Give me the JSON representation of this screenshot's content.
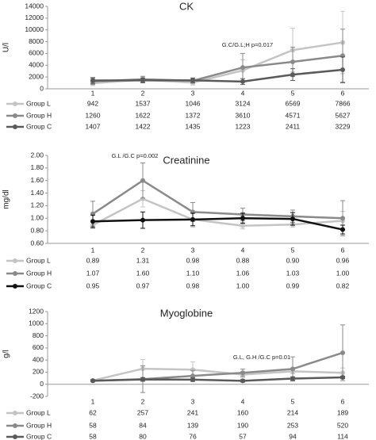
{
  "chart_data": [
    {
      "type": "line",
      "title": "CK",
      "ylabel": "U/l",
      "annotation": "G.C/G.L;H p=0.017",
      "categories": [
        "1",
        "2",
        "3",
        "4",
        "5",
        "6"
      ],
      "ylim": [
        0,
        14000
      ],
      "yticks": [
        0,
        2000,
        4000,
        6000,
        8000,
        10000,
        12000,
        14000
      ],
      "series": [
        {
          "name": "Group L",
          "color": "#c4c4c4",
          "values": [
            942,
            1537,
            1046,
            3124,
            6569,
            7866
          ],
          "errors": [
            400,
            500,
            400,
            1800,
            3700,
            5300
          ]
        },
        {
          "name": "Group H",
          "color": "#8a8a8a",
          "values": [
            1260,
            1622,
            1372,
            3610,
            4571,
            5627
          ],
          "errors": [
            500,
            500,
            400,
            2400,
            2500,
            4500
          ]
        },
        {
          "name": "Group C",
          "color": "#5a5a5a",
          "values": [
            1407,
            1422,
            1435,
            1223,
            2411,
            3229
          ],
          "errors": [
            500,
            400,
            400,
            500,
            1000,
            2200
          ]
        }
      ]
    },
    {
      "type": "line",
      "title": "Creatinine",
      "ylabel": "mg/dl",
      "annotation": "G.L /G.C p=0.002",
      "categories": [
        "1",
        "2",
        "3",
        "4",
        "5",
        "6"
      ],
      "ylim": [
        0.6,
        2.0
      ],
      "yticks": [
        {
          "value": 0.6,
          "label": "0.60"
        },
        {
          "value": 0.8,
          "label": "0.80"
        },
        {
          "value": 1.0,
          "label": "1.00"
        },
        {
          "value": 1.2,
          "label": "1.20"
        },
        {
          "value": 1.4,
          "label": "1.40"
        },
        {
          "value": 1.6,
          "label": "1.60"
        },
        {
          "value": 1.8,
          "label": "1.80"
        },
        {
          "value": 2.0,
          "label": "2.00"
        }
      ],
      "series": [
        {
          "name": "Group L",
          "color": "#c4c4c4",
          "values": [
            0.89,
            1.31,
            0.98,
            0.88,
            0.9,
            0.96
          ],
          "value_labels": [
            "0.89",
            "1.31",
            "0.98",
            "0.88",
            "0.90",
            "0.96"
          ],
          "errors": [
            0.05,
            0.13,
            0.12,
            0.05,
            0.04,
            0.15
          ]
        },
        {
          "name": "Group H",
          "color": "#8a8a8a",
          "values": [
            1.07,
            1.6,
            1.1,
            1.06,
            1.03,
            1.0
          ],
          "value_labels": [
            "1.07",
            "1.60",
            "1.10",
            "1.06",
            "1.03",
            "1.00"
          ],
          "errors": [
            0.2,
            0.28,
            0.15,
            0.1,
            0.1,
            0.28
          ]
        },
        {
          "name": "Group C",
          "color": "#111111",
          "values": [
            0.95,
            0.97,
            0.98,
            1.0,
            0.99,
            0.82
          ],
          "value_labels": [
            "0.95",
            "0.97",
            "0.98",
            "1.00",
            "0.99",
            "0.82"
          ],
          "errors": [
            0.1,
            0.13,
            0.1,
            0.08,
            0.1,
            0.07
          ]
        }
      ]
    },
    {
      "type": "line",
      "title": "Myoglobine",
      "ylabel": "g/l",
      "annotation": "G.L, G.H /G.C p=0.01",
      "categories": [
        "1",
        "2",
        "3",
        "4",
        "5",
        "6"
      ],
      "ylim": [
        -200,
        1200
      ],
      "yticks": [
        -200,
        0,
        200,
        400,
        600,
        800,
        1000,
        1200
      ],
      "series": [
        {
          "name": "Group L",
          "color": "#c4c4c4",
          "values": [
            62,
            257,
            241,
            160,
            214,
            189
          ],
          "errors": [
            20,
            150,
            130,
            50,
            40,
            80
          ]
        },
        {
          "name": "Group H",
          "color": "#8a8a8a",
          "values": [
            58,
            84,
            139,
            190,
            253,
            520
          ],
          "errors": [
            20,
            220,
            90,
            60,
            200,
            460
          ]
        },
        {
          "name": "Group C",
          "color": "#5a5a5a",
          "values": [
            58,
            80,
            76,
            57,
            94,
            114
          ],
          "errors": [
            10,
            30,
            30,
            20,
            30,
            20
          ]
        }
      ]
    }
  ]
}
